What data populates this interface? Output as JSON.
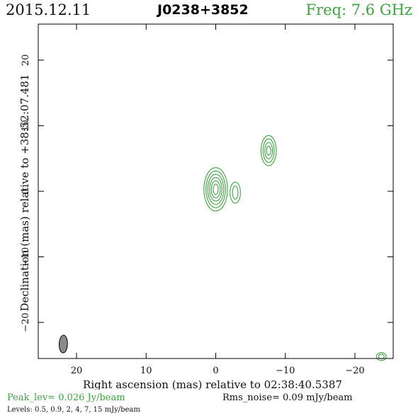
{
  "header": {
    "date": "2015.12.11",
    "source": "J0238+3852",
    "freq": "Freq: 7.6 GHz"
  },
  "footer": {
    "peak": "Peak_lev=  0.026 Jy/beam",
    "rms": "Rms_noise= 0.09 mJy/beam",
    "levels": "Levels: 0.5, 0.9,   2,   4,   7,  15 mJy/beam"
  },
  "colors": {
    "contour": "#3fa33f",
    "beam_fill": "#8a8a8a",
    "axes": "#000000"
  },
  "chart_data": {
    "type": "contour",
    "xlabel": "Right ascension (mas) relative to 02:38:40.5387",
    "ylabel": "Declination (mas) relative to +38:52:07.481",
    "xlim": [
      25.5,
      -25.5
    ],
    "ylim": [
      -25.5,
      25.5
    ],
    "xticks": [
      20,
      10,
      0,
      -10,
      -20
    ],
    "xtick_labels": [
      "20",
      "10",
      "0",
      "−10",
      "−20"
    ],
    "yticks": [
      20,
      10,
      0,
      -10,
      -20
    ],
    "ytick_labels": [
      "20",
      "10",
      "0",
      "−10",
      "−20"
    ],
    "contour_levels_mJy": [
      0.5,
      0.9,
      2,
      4,
      7,
      15
    ],
    "components": [
      {
        "ra": 0.0,
        "dec": 0.3,
        "semi_axes": [
          [
            1.7,
            3.3
          ],
          [
            1.4,
            2.8
          ],
          [
            1.15,
            2.3
          ],
          [
            0.9,
            1.8
          ],
          [
            0.65,
            1.3
          ],
          [
            0.35,
            0.8
          ]
        ]
      },
      {
        "ra": -2.8,
        "dec": -0.2,
        "semi_axes": [
          [
            0.75,
            1.6
          ],
          [
            0.4,
            1.0
          ]
        ]
      },
      {
        "ra": -7.6,
        "dec": 6.2,
        "semi_axes": [
          [
            1.1,
            2.3
          ],
          [
            0.8,
            1.8
          ],
          [
            0.55,
            1.25
          ],
          [
            0.3,
            0.7
          ]
        ]
      },
      {
        "ra": -23.8,
        "dec": -25.2,
        "semi_axes": [
          [
            0.7,
            0.6
          ],
          [
            0.4,
            0.35
          ]
        ]
      }
    ],
    "beam": {
      "ra": 21.9,
      "dec": -23.3,
      "major_mas": 2.7,
      "minor_mas": 1.2,
      "pa_deg": 2
    }
  }
}
